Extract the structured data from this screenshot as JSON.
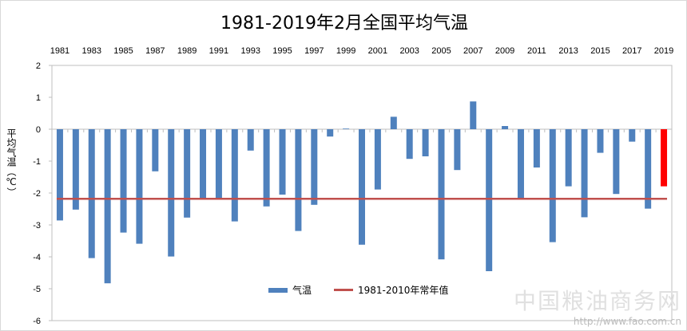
{
  "chart_data": {
    "type": "bar",
    "title": "1981-2019年2月全国平均气温",
    "ylabel": "平均气温（℃）",
    "xlabel": "",
    "ylim": [
      -6,
      2
    ],
    "yticks": [
      2,
      1,
      0,
      -1,
      -2,
      -3,
      -4,
      -5,
      -6
    ],
    "categories": [
      "1981",
      "1982",
      "1983",
      "1984",
      "1985",
      "1986",
      "1987",
      "1988",
      "1989",
      "1990",
      "1991",
      "1992",
      "1993",
      "1994",
      "1995",
      "1996",
      "1997",
      "1998",
      "1999",
      "2000",
      "2001",
      "2002",
      "2003",
      "2004",
      "2005",
      "2006",
      "2007",
      "2008",
      "2009",
      "2010",
      "2011",
      "2012",
      "2013",
      "2014",
      "2015",
      "2016",
      "2017",
      "2018",
      "2019"
    ],
    "xtick_labels": [
      "1981",
      "1983",
      "1985",
      "1987",
      "1989",
      "1991",
      "1993",
      "1995",
      "1997",
      "1999",
      "2001",
      "2003",
      "2005",
      "2007",
      "2009",
      "2011",
      "2013",
      "2015",
      "2017",
      "2019"
    ],
    "series": [
      {
        "name": "气温",
        "type": "bar",
        "color": "#4f81bd",
        "highlight_color": "#ff0000",
        "highlight_category": "2019",
        "values": [
          -2.86,
          -2.52,
          -4.04,
          -4.83,
          -3.24,
          -3.59,
          -1.32,
          -3.99,
          -2.77,
          -2.18,
          -2.18,
          -2.89,
          -0.67,
          -2.42,
          -2.05,
          -3.19,
          -2.37,
          -0.23,
          0.02,
          -3.62,
          -1.89,
          0.39,
          -0.93,
          -0.85,
          -4.08,
          -1.28,
          0.87,
          -4.45,
          0.1,
          -2.17,
          -1.2,
          -3.54,
          -1.79,
          -2.76,
          -0.74,
          -2.03,
          -0.39,
          -2.49,
          -1.79
        ]
      },
      {
        "name": "1981-2010年常年值",
        "type": "line",
        "color": "#c0504d",
        "value": -2.18
      }
    ],
    "grid": false,
    "legend": "bottom-center"
  },
  "watermark": {
    "name": "中国粮油商务网",
    "url": "http://www.fao.com.cn"
  }
}
